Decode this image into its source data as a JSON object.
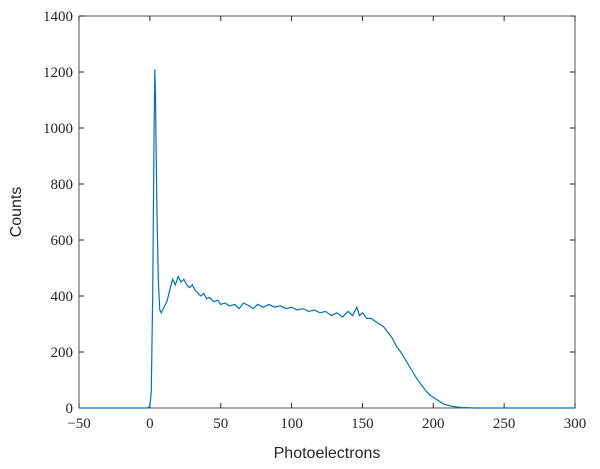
{
  "chart_data": {
    "type": "line",
    "x_label": "Photoelectrons",
    "y_label": "Counts",
    "color": "#0072bd",
    "x": [
      -50,
      -2,
      0,
      1,
      2,
      3,
      3.5,
      4,
      5,
      6,
      7,
      8,
      10,
      12,
      14,
      16,
      18,
      20,
      22,
      24,
      26,
      28,
      30,
      32,
      34,
      36,
      38,
      40,
      42,
      45,
      48,
      50,
      53,
      56,
      60,
      63,
      66,
      70,
      73,
      76,
      80,
      84,
      88,
      92,
      96,
      100,
      104,
      108,
      112,
      116,
      120,
      124,
      128,
      132,
      136,
      140,
      143,
      146,
      148,
      150,
      153,
      156,
      159,
      162,
      165,
      168,
      171,
      174,
      177,
      180,
      183,
      186,
      189,
      192,
      195,
      198,
      201,
      204,
      207,
      210,
      213,
      216,
      220,
      225,
      230,
      300
    ],
    "values": [
      0,
      0,
      5,
      60,
      400,
      1000,
      1210,
      1100,
      700,
      450,
      350,
      340,
      360,
      380,
      420,
      460,
      440,
      470,
      450,
      460,
      440,
      430,
      440,
      420,
      410,
      400,
      410,
      390,
      395,
      380,
      385,
      370,
      375,
      365,
      370,
      355,
      375,
      365,
      355,
      370,
      360,
      370,
      360,
      365,
      355,
      360,
      350,
      355,
      345,
      350,
      340,
      345,
      330,
      340,
      325,
      345,
      330,
      360,
      330,
      340,
      320,
      320,
      310,
      300,
      290,
      270,
      250,
      220,
      200,
      175,
      150,
      125,
      100,
      80,
      60,
      45,
      35,
      25,
      15,
      10,
      6,
      4,
      2,
      1,
      0,
      0
    ],
    "xlim": [
      -50,
      300
    ],
    "ylim": [
      0,
      1400
    ],
    "xticks": [
      {
        "value": -50,
        "label": "−50"
      },
      0,
      50,
      100,
      150,
      200,
      250,
      300
    ],
    "yticks": [
      0,
      200,
      400,
      600,
      800,
      1000,
      1200,
      1400
    ]
  }
}
